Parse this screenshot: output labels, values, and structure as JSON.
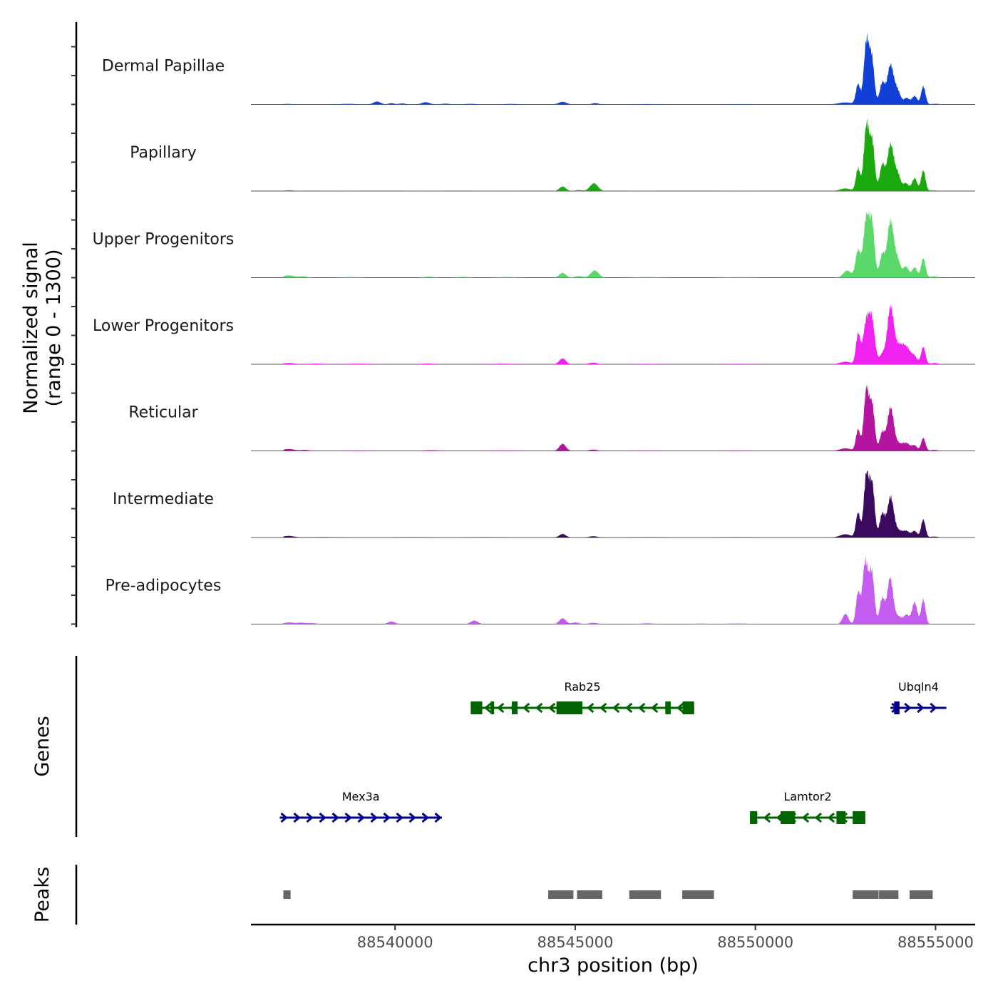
{
  "chart_data": {
    "type": "area",
    "title": "",
    "ylabel": "Normalized signal\n(range 0 - 1300)",
    "ylabel_lines": [
      "Normalized signal",
      "(range 0 - 1300)"
    ],
    "xlabel": "chr3 position (bp)",
    "ylim": [
      0,
      1300
    ],
    "xlim": [
      88536000,
      88556100
    ],
    "x_ticks": [
      88540000,
      88545000,
      88550000,
      88555000
    ],
    "x_tick_labels": [
      "88540000",
      "88545000",
      "88550000",
      "88555000"
    ],
    "grid": false,
    "signal_start": 88536900,
    "signal_end": 88555100,
    "tracks": [
      {
        "name": "Dermal Papillae",
        "color": "#1240d6",
        "peaks": [
          [
            88537000,
            8,
            150
          ],
          [
            88538700,
            10,
            200
          ],
          [
            88539500,
            45,
            100
          ],
          [
            88539900,
            20,
            80
          ],
          [
            88540200,
            15,
            90
          ],
          [
            88540850,
            35,
            110
          ],
          [
            88541400,
            12,
            120
          ],
          [
            88542100,
            10,
            150
          ],
          [
            88543200,
            8,
            200
          ],
          [
            88544650,
            40,
            110
          ],
          [
            88545550,
            20,
            90
          ],
          [
            88547000,
            6,
            300
          ],
          [
            88549500,
            5,
            300
          ],
          [
            88552500,
            30,
            200
          ],
          [
            88552850,
            310,
            60
          ],
          [
            88553080,
            950,
            70
          ],
          [
            88553230,
            700,
            70
          ],
          [
            88553520,
            330,
            70
          ],
          [
            88553750,
            610,
            90
          ],
          [
            88553950,
            200,
            80
          ],
          [
            88554200,
            100,
            80
          ],
          [
            88554420,
            130,
            70
          ],
          [
            88554660,
            280,
            60
          ],
          [
            88555000,
            10,
            100
          ]
        ]
      },
      {
        "name": "Papillary",
        "color": "#1aaa0d",
        "peaks": [
          [
            88537050,
            12,
            150
          ],
          [
            88538500,
            5,
            300
          ],
          [
            88540800,
            6,
            300
          ],
          [
            88542800,
            6,
            300
          ],
          [
            88544650,
            70,
            90
          ],
          [
            88545100,
            15,
            100
          ],
          [
            88545520,
            120,
            110
          ],
          [
            88546800,
            6,
            200
          ],
          [
            88549500,
            5,
            300
          ],
          [
            88552500,
            40,
            150
          ],
          [
            88552850,
            350,
            60
          ],
          [
            88553080,
            1000,
            70
          ],
          [
            88553240,
            760,
            70
          ],
          [
            88553520,
            400,
            70
          ],
          [
            88553750,
            720,
            90
          ],
          [
            88553950,
            250,
            80
          ],
          [
            88554180,
            120,
            80
          ],
          [
            88554420,
            200,
            70
          ],
          [
            88554660,
            320,
            60
          ],
          [
            88554950,
            10,
            100
          ]
        ]
      },
      {
        "name": "Upper Progenitors",
        "color": "#5ad96a",
        "peaks": [
          [
            88537050,
            35,
            150
          ],
          [
            88537450,
            20,
            120
          ],
          [
            88538800,
            10,
            200
          ],
          [
            88540950,
            15,
            120
          ],
          [
            88541900,
            12,
            150
          ],
          [
            88543100,
            10,
            200
          ],
          [
            88544650,
            75,
            90
          ],
          [
            88545100,
            25,
            100
          ],
          [
            88545540,
            110,
            110
          ],
          [
            88547000,
            8,
            300
          ],
          [
            88549500,
            8,
            300
          ],
          [
            88552550,
            110,
            110
          ],
          [
            88552850,
            420,
            70
          ],
          [
            88553080,
            920,
            80
          ],
          [
            88553240,
            780,
            70
          ],
          [
            88553520,
            350,
            70
          ],
          [
            88553750,
            880,
            90
          ],
          [
            88553950,
            250,
            80
          ],
          [
            88554180,
            170,
            80
          ],
          [
            88554420,
            160,
            70
          ],
          [
            88554660,
            300,
            60
          ],
          [
            88554960,
            20,
            100
          ]
        ]
      },
      {
        "name": "Lower Progenitors",
        "color": "#f022f0",
        "peaks": [
          [
            88537050,
            20,
            150
          ],
          [
            88537800,
            10,
            200
          ],
          [
            88539000,
            8,
            300
          ],
          [
            88540900,
            12,
            150
          ],
          [
            88543000,
            8,
            300
          ],
          [
            88544650,
            90,
            90
          ],
          [
            88545500,
            25,
            110
          ],
          [
            88547000,
            6,
            300
          ],
          [
            88549500,
            6,
            300
          ],
          [
            88552500,
            40,
            150
          ],
          [
            88552850,
            460,
            60
          ],
          [
            88553080,
            650,
            90
          ],
          [
            88553240,
            600,
            80
          ],
          [
            88553520,
            150,
            80
          ],
          [
            88553750,
            860,
            90
          ],
          [
            88553980,
            250,
            120
          ],
          [
            88554200,
            230,
            120
          ],
          [
            88554420,
            100,
            80
          ],
          [
            88554660,
            270,
            60
          ],
          [
            88554960,
            20,
            100
          ]
        ]
      },
      {
        "name": "Reticular",
        "color": "#b4159f",
        "peaks": [
          [
            88537050,
            30,
            150
          ],
          [
            88537500,
            15,
            120
          ],
          [
            88539000,
            6,
            300
          ],
          [
            88541000,
            10,
            200
          ],
          [
            88543000,
            6,
            300
          ],
          [
            88544650,
            110,
            90
          ],
          [
            88545500,
            20,
            110
          ],
          [
            88547000,
            5,
            300
          ],
          [
            88549500,
            5,
            300
          ],
          [
            88552500,
            40,
            150
          ],
          [
            88552850,
            330,
            60
          ],
          [
            88553080,
            940,
            70
          ],
          [
            88553240,
            700,
            70
          ],
          [
            88553520,
            280,
            70
          ],
          [
            88553750,
            660,
            90
          ],
          [
            88553980,
            100,
            110
          ],
          [
            88554200,
            110,
            100
          ],
          [
            88554420,
            80,
            70
          ],
          [
            88554660,
            200,
            60
          ],
          [
            88554960,
            15,
            100
          ]
        ]
      },
      {
        "name": "Intermediate",
        "color": "#3b0a5e",
        "peaks": [
          [
            88537050,
            25,
            150
          ],
          [
            88538000,
            6,
            300
          ],
          [
            88540500,
            5,
            300
          ],
          [
            88542500,
            5,
            300
          ],
          [
            88544650,
            55,
            90
          ],
          [
            88545500,
            20,
            110
          ],
          [
            88547000,
            5,
            300
          ],
          [
            88549500,
            5,
            300
          ],
          [
            88552500,
            50,
            150
          ],
          [
            88552850,
            380,
            60
          ],
          [
            88553080,
            960,
            70
          ],
          [
            88553240,
            820,
            70
          ],
          [
            88553520,
            360,
            70
          ],
          [
            88553750,
            620,
            90
          ],
          [
            88553980,
            100,
            110
          ],
          [
            88554200,
            90,
            90
          ],
          [
            88554420,
            100,
            70
          ],
          [
            88554660,
            280,
            60
          ],
          [
            88554960,
            15,
            100
          ]
        ]
      },
      {
        "name": "Pre-adipocytes",
        "color": "#c45cf0",
        "peaks": [
          [
            88537050,
            25,
            150
          ],
          [
            88537400,
            20,
            120
          ],
          [
            88537700,
            15,
            120
          ],
          [
            88539900,
            40,
            100
          ],
          [
            88542200,
            55,
            100
          ],
          [
            88544650,
            90,
            90
          ],
          [
            88545000,
            25,
            100
          ],
          [
            88545500,
            20,
            110
          ],
          [
            88547000,
            12,
            200
          ],
          [
            88548500,
            8,
            200
          ],
          [
            88549500,
            10,
            300
          ],
          [
            88552500,
            160,
            80
          ],
          [
            88552850,
            480,
            60
          ],
          [
            88553050,
            960,
            75
          ],
          [
            88553230,
            800,
            70
          ],
          [
            88553520,
            400,
            70
          ],
          [
            88553740,
            710,
            80
          ],
          [
            88553960,
            120,
            100
          ],
          [
            88554200,
            140,
            80
          ],
          [
            88554420,
            340,
            70
          ],
          [
            88554660,
            380,
            60
          ],
          [
            88555300,
            15,
            80
          ]
        ]
      }
    ],
    "genes_title": "Genes",
    "genes": [
      {
        "name": "Rab25",
        "strand": "-",
        "start": 88542100,
        "end": 88548300,
        "row": 0,
        "color": "#006400",
        "exons": [
          [
            88542100,
            88542420
          ],
          [
            88542650,
            88542750
          ],
          [
            88543240,
            88543400
          ],
          [
            88544480,
            88545200
          ],
          [
            88547500,
            88547650
          ],
          [
            88547980,
            88548300
          ]
        ]
      },
      {
        "name": "Ubqln4",
        "strand": "+",
        "start": 88553750,
        "end": 88555300,
        "row": 0,
        "color": "#00008b",
        "exons": [
          [
            88553850,
            88554000
          ]
        ]
      },
      {
        "name": "Mex3a",
        "strand": "+",
        "start": 88536800,
        "end": 88541300,
        "row": 1,
        "color": "#00008b",
        "exons": []
      },
      {
        "name": "Lamtor2",
        "strand": "-",
        "start": 88549850,
        "end": 88553050,
        "row": 1,
        "color": "#006400",
        "exons": [
          [
            88549850,
            88550050
          ],
          [
            88550700,
            88551100
          ],
          [
            88552250,
            88552500
          ],
          [
            88552700,
            88553050
          ]
        ]
      }
    ],
    "peaks_title": "Peaks",
    "peaks_color": "#666666",
    "peaks": [
      [
        88536900,
        88537100
      ],
      [
        88544250,
        88544950
      ],
      [
        88545050,
        88545750
      ],
      [
        88546500,
        88547380
      ],
      [
        88547970,
        88548850
      ],
      [
        88552700,
        88553420
      ],
      [
        88553430,
        88553970
      ],
      [
        88554280,
        88554920
      ]
    ]
  }
}
